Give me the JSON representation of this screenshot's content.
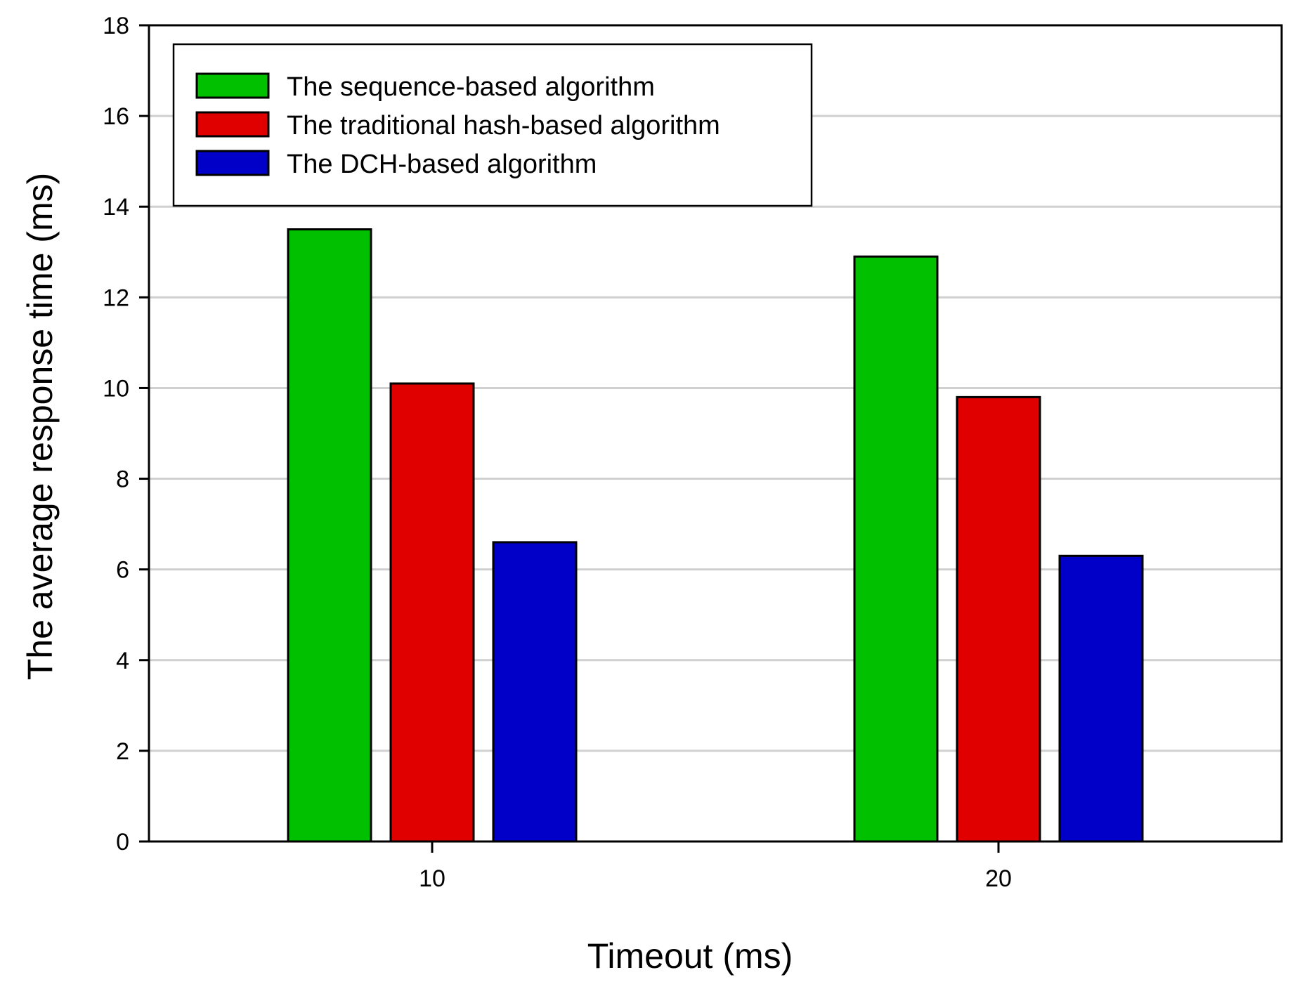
{
  "chart_data": {
    "type": "bar",
    "title": "",
    "xlabel": "Timeout (ms)",
    "ylabel": "The average response time (ms)",
    "categories": [
      "10",
      "20"
    ],
    "ylim": [
      0,
      18
    ],
    "yticks": [
      "0",
      "2",
      "4",
      "6",
      "8",
      "10",
      "12",
      "14",
      "16",
      "18"
    ],
    "grid": true,
    "legend_position": "top-left",
    "series": [
      {
        "name": "The sequence-based algorithm",
        "color": "#00c000",
        "values": [
          13.5,
          12.9
        ]
      },
      {
        "name": "The traditional hash-based algorithm",
        "color": "#e00000",
        "values": [
          10.1,
          9.8
        ]
      },
      {
        "name": "The DCH-based algorithm",
        "color": "#0000c8",
        "values": [
          6.6,
          6.3
        ]
      }
    ]
  }
}
